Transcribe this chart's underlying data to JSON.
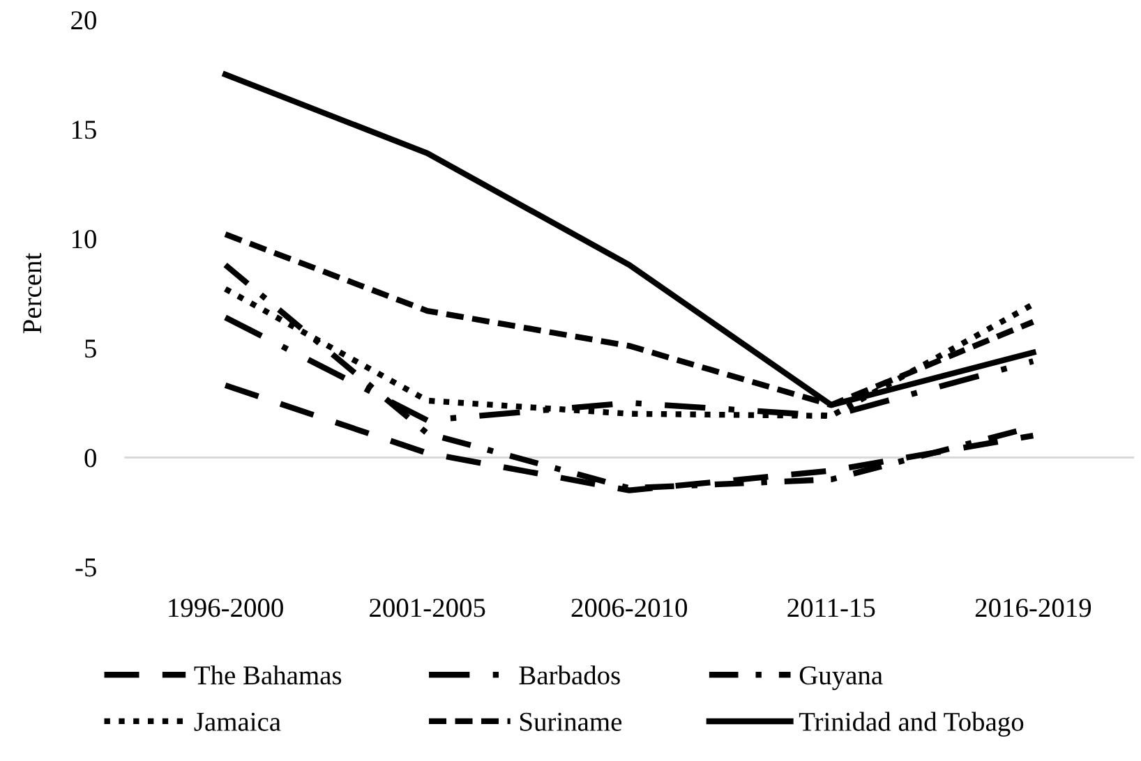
{
  "chart_data": {
    "type": "line",
    "ylabel": "Percent",
    "categories": [
      "1996-2000",
      "2001-2005",
      "2006-2010",
      "2011-15",
      "2016-2019"
    ],
    "ref_lines": [
      {
        "axis": "y",
        "value": 0,
        "color": "#d9d9d9"
      }
    ],
    "ylim": [
      -5,
      20
    ],
    "yticks": [
      -5,
      0,
      5,
      10,
      15,
      20
    ],
    "grid": false,
    "legend": "bottom",
    "marker": "none",
    "series": [
      {
        "name": "The Bahamas",
        "color": "#000000",
        "line_style": "longdash",
        "values": [
          3.3,
          0.2,
          -1.5,
          -0.6,
          1.0
        ]
      },
      {
        "name": "Barbados",
        "color": "#000000",
        "line_style": "longdashdot",
        "values": [
          6.4,
          1.7,
          2.5,
          1.9,
          4.4
        ]
      },
      {
        "name": "Guyana",
        "color": "#000000",
        "line_style": "dashdot",
        "values": [
          8.8,
          1.1,
          -1.4,
          -1.0,
          1.4
        ]
      },
      {
        "name": "Jamaica",
        "color": "#000000",
        "line_style": "dotted",
        "values": [
          7.7,
          2.6,
          2.0,
          1.9,
          7.0
        ]
      },
      {
        "name": "Suriname",
        "color": "#000000",
        "line_style": "dashed",
        "values": [
          10.2,
          6.7,
          5.1,
          2.4,
          6.2
        ]
      },
      {
        "name": "Trinidad and Tobago",
        "color": "#000000",
        "line_style": "solid",
        "values": [
          17.5,
          13.9,
          8.8,
          2.4,
          4.8
        ]
      }
    ]
  }
}
